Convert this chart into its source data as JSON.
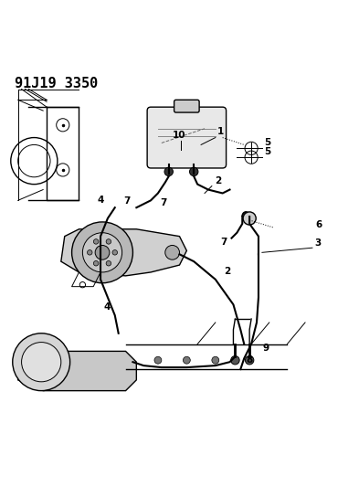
{
  "title_code": "91J19 3350",
  "bg_color": "#ffffff",
  "line_color": "#000000",
  "title_fontsize": 11,
  "fig_width": 3.93,
  "fig_height": 5.33,
  "dpi": 100
}
